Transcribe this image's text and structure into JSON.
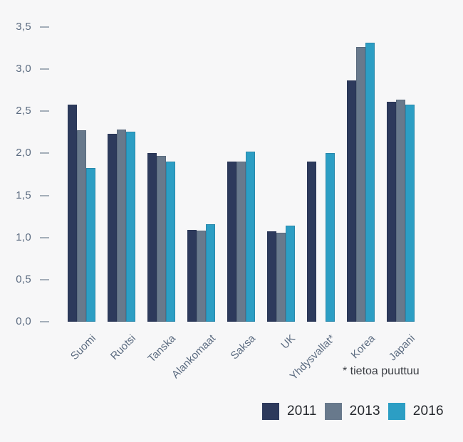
{
  "background": "#f7f7f8",
  "chart_data": {
    "type": "bar",
    "title": "",
    "xlabel": "",
    "ylabel": "",
    "categories": [
      "Suomi",
      "Ruotsi",
      "Tanska",
      "Alankomaat",
      "Saksa",
      "UK",
      "Yhdysvallat*",
      "Korea",
      "Japani"
    ],
    "series": [
      {
        "name": "2011",
        "color": "#2d3a5c",
        "values": [
          2.58,
          2.23,
          2.0,
          1.09,
          1.9,
          1.07,
          1.9,
          2.87,
          2.61
        ]
      },
      {
        "name": "2013",
        "color": "#68798c",
        "values": [
          2.27,
          2.28,
          1.97,
          1.08,
          1.9,
          1.06,
          null,
          3.26,
          2.64
        ]
      },
      {
        "name": "2016",
        "color": "#2c9ec4",
        "values": [
          1.83,
          2.26,
          1.9,
          1.16,
          2.02,
          1.14,
          2.0,
          3.31,
          2.58
        ]
      }
    ],
    "ylim": [
      0,
      3.5
    ],
    "ytick_step": 0.5,
    "ytick_labels": [
      "0,0",
      "0,5",
      "1,0",
      "1,5",
      "2,0",
      "2,5",
      "3,0",
      "3,5"
    ],
    "grid": false,
    "legend_position": "bottom-right",
    "footnote": "* tietoa puuttuu"
  }
}
